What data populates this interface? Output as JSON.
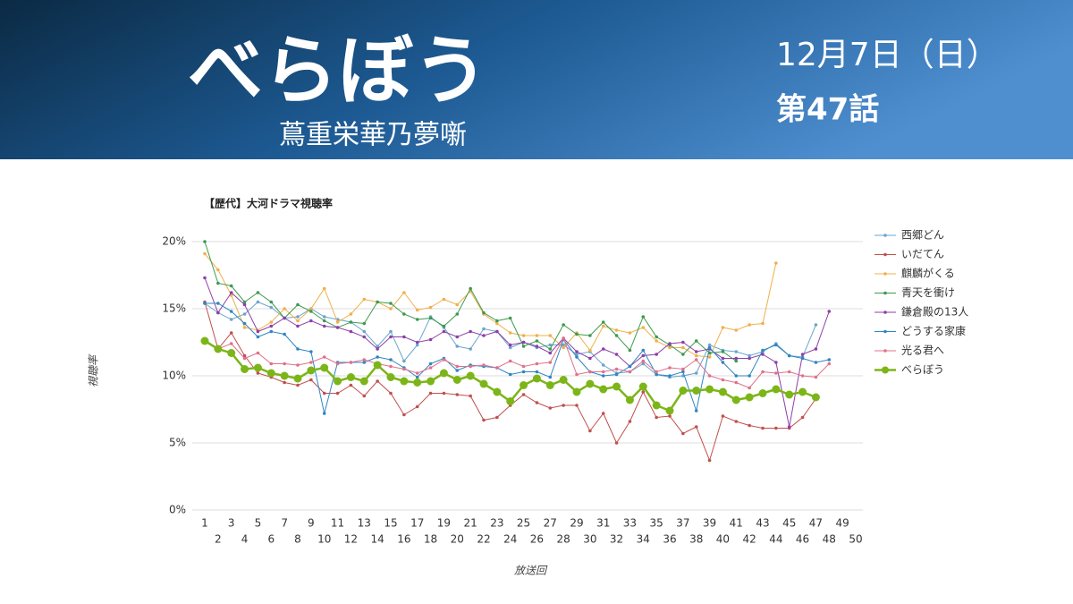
{
  "header": {
    "title": "べらぼう",
    "subtitle": "蔦重栄華乃夢噺",
    "date": "12月7日（日）",
    "episode": "第47話"
  },
  "chart_data": {
    "type": "line",
    "title": "【歴代】大河ドラマ視聴率",
    "x_label": "放送回",
    "y_label": "視聴率",
    "x": [
      1,
      2,
      3,
      4,
      5,
      6,
      7,
      8,
      9,
      10,
      11,
      12,
      13,
      14,
      15,
      16,
      17,
      18,
      19,
      20,
      21,
      22,
      23,
      24,
      25,
      26,
      27,
      28,
      29,
      30,
      31,
      32,
      33,
      34,
      35,
      36,
      37,
      38,
      39,
      40,
      41,
      42,
      43,
      44,
      45,
      46,
      47,
      48,
      49,
      50
    ],
    "xlim": [
      1,
      50
    ],
    "xticks": [
      1,
      2,
      3,
      4,
      5,
      6,
      7,
      8,
      9,
      10,
      11,
      12,
      13,
      14,
      15,
      16,
      17,
      18,
      19,
      20,
      21,
      22,
      23,
      24,
      25,
      26,
      27,
      28,
      29,
      30,
      31,
      32,
      33,
      34,
      35,
      36,
      37,
      38,
      39,
      40,
      41,
      42,
      43,
      44,
      45,
      46,
      47,
      48,
      49,
      50
    ],
    "ylim": [
      0,
      20
    ],
    "yticks": [
      {
        "value": 0,
        "label": "0%"
      },
      {
        "value": 5,
        "label": "5%"
      },
      {
        "value": 10,
        "label": "10%"
      },
      {
        "value": 15,
        "label": "15%"
      },
      {
        "value": 20,
        "label": "20%"
      }
    ],
    "grid": true,
    "legend": "right",
    "series": [
      {
        "name": "西郷どん",
        "color": "#6aa6cc",
        "values": [
          15.4,
          14.7,
          14.2,
          14.6,
          15.5,
          15.1,
          14.3,
          14.4,
          15.0,
          14.4,
          14.2,
          14.0,
          13.3,
          12.2,
          13.3,
          11.1,
          12.3,
          14.4,
          13.6,
          12.2,
          12.0,
          13.5,
          13.3,
          12.1,
          12.5,
          12.1,
          12.3,
          12.3,
          11.6,
          11.8,
          10.8,
          10.2,
          10.3,
          10.9,
          10.1,
          9.9,
          10.0,
          10.2,
          12.3,
          11.9,
          11.8,
          11.5,
          11.8,
          12.4,
          11.5,
          11.4,
          13.8,
          null,
          null,
          null
        ]
      },
      {
        "name": "いだてん",
        "color": "#c0504d",
        "values": [
          15.5,
          12.0,
          13.2,
          11.5,
          10.2,
          9.9,
          9.5,
          9.3,
          9.7,
          8.7,
          8.7,
          9.3,
          8.5,
          9.6,
          8.7,
          7.1,
          7.7,
          8.7,
          8.7,
          8.6,
          8.5,
          6.7,
          6.9,
          7.8,
          8.6,
          8.0,
          7.6,
          7.8,
          7.8,
          5.9,
          7.2,
          5.0,
          6.6,
          8.8,
          6.9,
          7.0,
          5.7,
          6.2,
          3.7,
          7.0,
          6.6,
          6.3,
          6.1,
          6.1,
          6.1,
          6.9,
          8.3,
          null,
          null,
          null
        ]
      },
      {
        "name": "麒麟がくる",
        "color": "#f0b04c",
        "values": [
          19.1,
          17.9,
          16.0,
          13.6,
          13.4,
          14.0,
          15.0,
          14.1,
          15.0,
          16.5,
          14.0,
          14.6,
          15.7,
          15.5,
          15.0,
          16.2,
          14.9,
          15.1,
          15.7,
          15.3,
          16.3,
          14.6,
          13.9,
          13.2,
          13.0,
          13.0,
          13.0,
          12.1,
          13.2,
          11.9,
          13.7,
          13.4,
          13.2,
          13.6,
          12.6,
          12.1,
          12.1,
          11.5,
          11.4,
          13.6,
          13.4,
          13.8,
          13.9,
          18.4,
          null,
          null,
          null,
          null,
          null,
          null
        ]
      },
      {
        "name": "青天を衝け",
        "color": "#3d9a4f",
        "values": [
          20.0,
          16.9,
          16.7,
          15.5,
          16.2,
          15.5,
          14.3,
          15.3,
          14.8,
          14.1,
          13.6,
          14.0,
          13.9,
          15.5,
          15.4,
          14.6,
          14.2,
          14.3,
          13.7,
          14.6,
          16.5,
          14.7,
          14.1,
          14.3,
          12.2,
          12.6,
          12.0,
          13.8,
          13.1,
          13.0,
          14.0,
          13.0,
          11.9,
          14.4,
          12.9,
          12.3,
          11.6,
          12.6,
          11.7,
          11.8,
          11.1,
          null,
          null,
          null,
          null,
          null,
          null,
          null,
          null,
          null
        ]
      },
      {
        "name": "鎌倉殿の13人",
        "color": "#8e3fa8",
        "values": [
          17.3,
          14.7,
          16.2,
          15.3,
          13.3,
          13.7,
          14.3,
          13.7,
          14.1,
          13.7,
          13.6,
          13.3,
          12.9,
          12.0,
          12.9,
          12.9,
          12.5,
          12.7,
          13.3,
          12.9,
          13.3,
          13.0,
          13.3,
          12.3,
          12.5,
          12.2,
          11.7,
          12.8,
          11.8,
          11.3,
          12.0,
          11.6,
          10.7,
          11.5,
          11.6,
          12.4,
          12.5,
          11.8,
          12.0,
          11.3,
          11.3,
          11.3,
          11.6,
          11.0,
          6.2,
          11.6,
          12.0,
          14.8,
          null,
          null
        ]
      },
      {
        "name": "どうする家康",
        "color": "#2f86c2",
        "values": [
          15.4,
          15.4,
          14.8,
          13.9,
          12.9,
          13.3,
          13.1,
          12.0,
          11.8,
          7.2,
          11.0,
          11.0,
          11.0,
          11.4,
          11.2,
          10.6,
          9.9,
          10.9,
          11.3,
          10.4,
          10.8,
          10.7,
          10.6,
          10.1,
          10.3,
          10.3,
          9.9,
          12.7,
          11.4,
          10.3,
          10.0,
          10.1,
          10.7,
          11.9,
          10.1,
          10.0,
          10.3,
          7.4,
          12.1,
          11.0,
          10.0,
          10.0,
          11.9,
          12.3,
          11.5,
          11.3,
          11.0,
          11.2,
          null,
          null
        ]
      },
      {
        "name": "光る君へ",
        "color": "#e0718b",
        "values": [
          12.7,
          12.0,
          12.4,
          11.3,
          11.7,
          10.9,
          10.9,
          10.8,
          11.0,
          11.4,
          10.9,
          11.0,
          11.2,
          10.9,
          10.7,
          10.5,
          10.2,
          10.6,
          11.2,
          10.7,
          10.7,
          10.8,
          10.6,
          11.1,
          10.7,
          10.9,
          11.0,
          12.8,
          10.1,
          10.3,
          10.3,
          10.5,
          10.3,
          11.1,
          10.3,
          10.6,
          10.5,
          11.2,
          10.0,
          9.7,
          9.5,
          9.1,
          10.3,
          10.2,
          10.3,
          10.0,
          9.9,
          10.9,
          null,
          null
        ]
      },
      {
        "name": "べらぼう",
        "color": "#7cb518",
        "values": [
          12.6,
          12.0,
          11.7,
          10.5,
          10.6,
          10.2,
          10.0,
          9.8,
          10.4,
          10.6,
          9.6,
          9.9,
          9.6,
          10.8,
          9.9,
          9.6,
          9.5,
          9.6,
          10.2,
          9.7,
          10.0,
          9.4,
          8.8,
          8.1,
          9.3,
          9.8,
          9.3,
          9.7,
          8.8,
          9.4,
          9.0,
          9.2,
          8.2,
          9.2,
          7.8,
          7.4,
          8.9,
          8.9,
          9.0,
          8.8,
          8.2,
          8.4,
          8.7,
          9.0,
          8.6,
          8.8,
          8.4,
          null,
          null,
          null
        ]
      }
    ]
  }
}
